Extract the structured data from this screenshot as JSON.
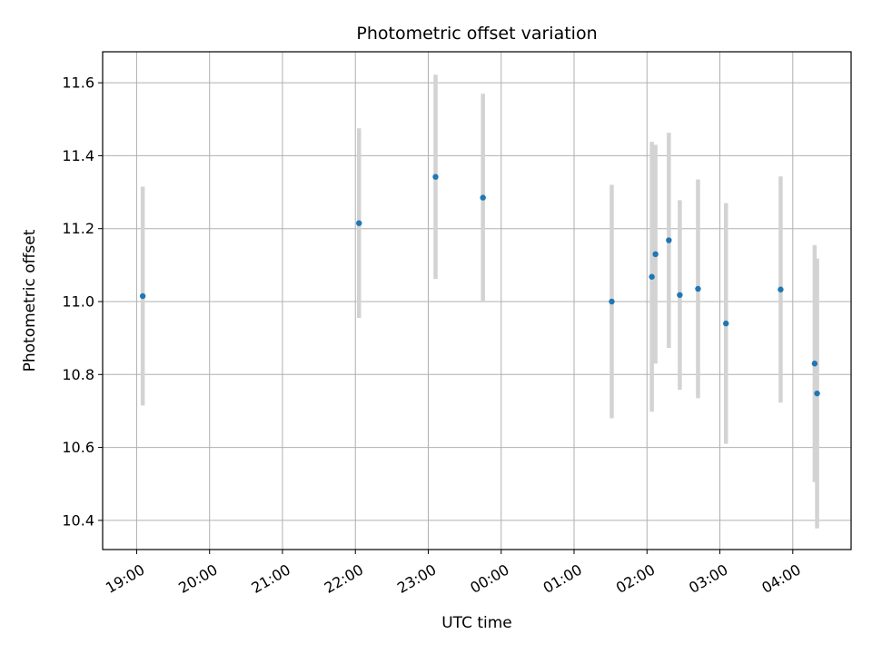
{
  "chart_data": {
    "type": "scatter",
    "title": "Photometric offset variation",
    "xlabel": "UTC time",
    "ylabel": "Photometric offset",
    "x_ticks": [
      "19:00",
      "20:00",
      "21:00",
      "22:00",
      "23:00",
      "00:00",
      "01:00",
      "02:00",
      "03:00",
      "04:00"
    ],
    "y_ticks": [
      "10.4",
      "10.6",
      "10.8",
      "11.0",
      "11.2",
      "11.4",
      "11.6"
    ],
    "ylim": [
      10.32,
      11.685
    ],
    "xlim": [
      "18:32",
      "04:48"
    ],
    "grid": true,
    "colors": {
      "marker": "#1f77b4",
      "errorbar": "#d3d3d3",
      "grid": "#b0b0b0"
    },
    "points": [
      {
        "x": "19:05",
        "y": 11.015,
        "err": 0.3
      },
      {
        "x": "22:03",
        "y": 11.215,
        "err": 0.26
      },
      {
        "x": "23:06",
        "y": 11.342,
        "err": 0.28
      },
      {
        "x": "23:45",
        "y": 11.285,
        "err": 0.285
      },
      {
        "x": "01:31",
        "y": 11.0,
        "err": 0.32
      },
      {
        "x": "02:04",
        "y": 11.068,
        "err": 0.37
      },
      {
        "x": "02:07",
        "y": 11.13,
        "err": 0.3
      },
      {
        "x": "02:18",
        "y": 11.168,
        "err": 0.295
      },
      {
        "x": "02:27",
        "y": 11.018,
        "err": 0.26
      },
      {
        "x": "02:42",
        "y": 11.035,
        "err": 0.3
      },
      {
        "x": "03:05",
        "y": 10.94,
        "err": 0.33
      },
      {
        "x": "03:50",
        "y": 11.033,
        "err": 0.31
      },
      {
        "x": "04:18",
        "y": 10.83,
        "err": 0.325
      },
      {
        "x": "04:20",
        "y": 10.748,
        "err": 0.37
      }
    ]
  }
}
